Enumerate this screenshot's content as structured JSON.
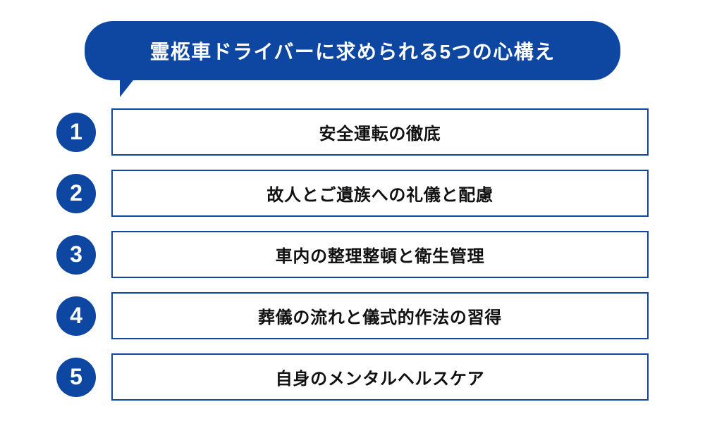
{
  "colors": {
    "primary": "#0d47a1",
    "background": "#ffffff",
    "text": "#111111",
    "border": "#0d47a1"
  },
  "typography": {
    "title_fontsize": 28,
    "item_fontsize": 24,
    "number_fontsize": 32,
    "font_weight": "bold"
  },
  "layout": {
    "bubble_width": 760,
    "bubble_radius": 40,
    "row_gap": 20,
    "circle_diameter": 56,
    "border_width": 2.5
  },
  "header": {
    "title": "霊柩車ドライバーに求められる5つの心構え"
  },
  "items": [
    {
      "number": "1",
      "text": "安全運転の徹底"
    },
    {
      "number": "2",
      "text": "故人とご遺族への礼儀と配慮"
    },
    {
      "number": "3",
      "text": "車内の整理整頓と衛生管理"
    },
    {
      "number": "4",
      "text": "葬儀の流れと儀式的作法の習得"
    },
    {
      "number": "5",
      "text": "自身のメンタルヘルスケア"
    }
  ]
}
